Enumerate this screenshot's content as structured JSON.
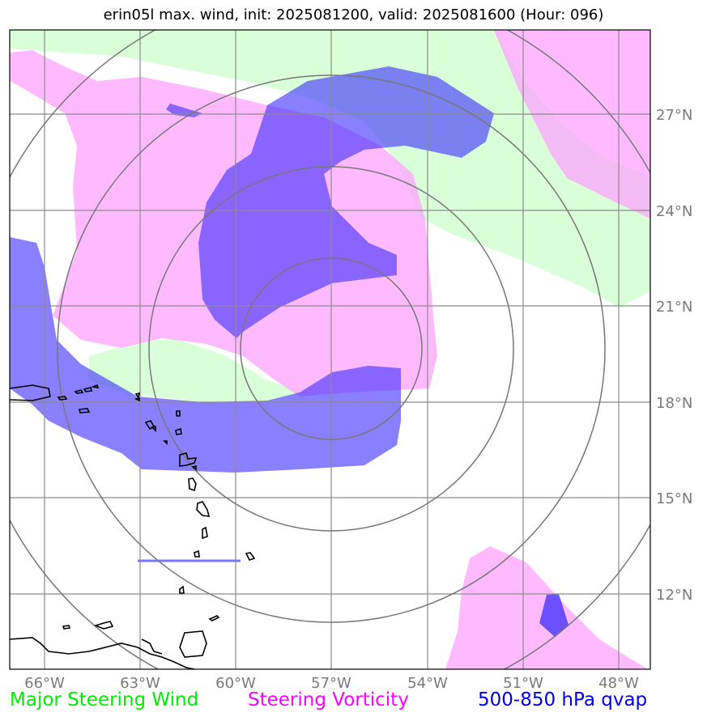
{
  "title": "erin05l max. wind, init: 2025081200, valid: 2025081600 (Hour: 096)",
  "longitude_labels": [
    "66°W",
    "63°W",
    "60°W",
    "57°W",
    "54°W",
    "51°W",
    "48°W"
  ],
  "latitude_labels": [
    "27°N",
    "24°N",
    "21°N",
    "18°N",
    "15°N",
    "12°N"
  ],
  "legend": [
    {
      "label": "Major Steering Wind",
      "color": "#00ff00"
    },
    {
      "label": "Steering Vorticity",
      "color": "#ff00ff"
    },
    {
      "label": "500-850 hPa qvap",
      "color": "#0000ee"
    }
  ],
  "colors": {
    "steering_wind_fill": "#ccffcc",
    "steering_vorticity_fill": "#ff99ff",
    "qvap_fill": "#2233ff",
    "gridline": "#8a8a8a",
    "coastline": "#000000"
  }
}
